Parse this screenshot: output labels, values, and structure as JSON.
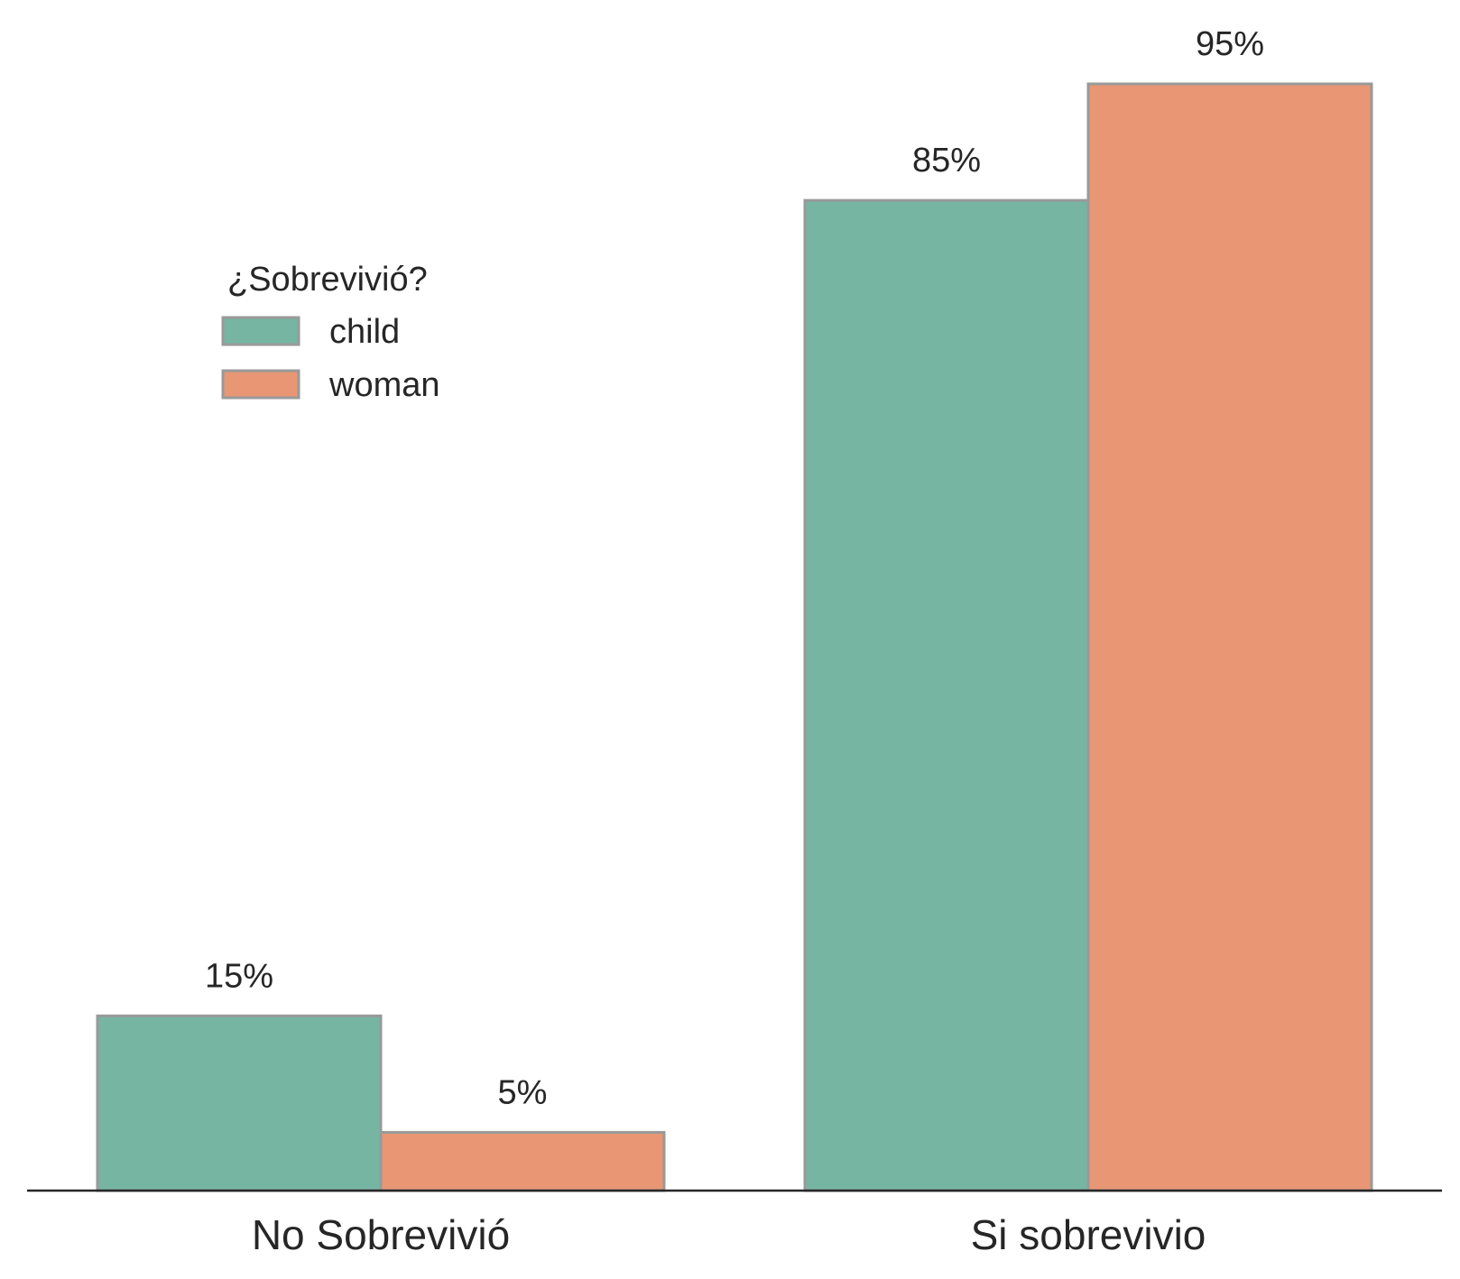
{
  "chart_data": {
    "type": "bar",
    "categories": [
      "No Sobrevivió",
      "Si sobrevivio"
    ],
    "series": [
      {
        "name": "child",
        "values": [
          15,
          85
        ],
        "labels": [
          "15%",
          "85%"
        ],
        "color": "#76b5a2"
      },
      {
        "name": "woman",
        "values": [
          5,
          95
        ],
        "labels": [
          "5%",
          "95%"
        ],
        "color": "#e89674"
      }
    ],
    "ylim": [
      0,
      100
    ],
    "legend_title": "¿Sobrevivió?",
    "legend_placement": "upper-left",
    "grid": false,
    "edge_color": "#999999",
    "axis_color": "#262626"
  }
}
